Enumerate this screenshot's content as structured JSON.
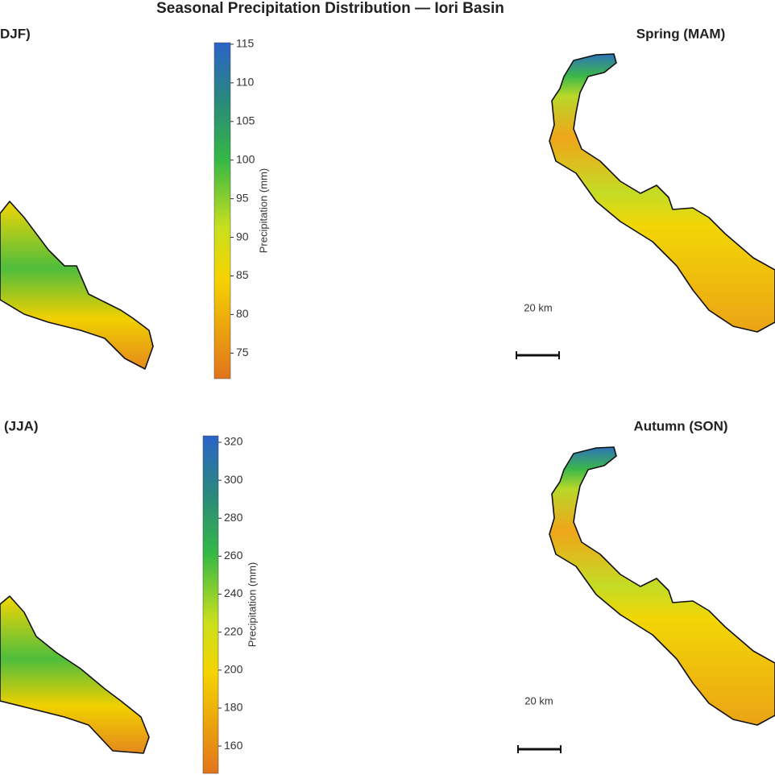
{
  "title": "Seasonal Precipitation Distribution — Iori Basin",
  "panels": [
    {
      "title": "DJF)"
    },
    {
      "title": "Spring (MAM)",
      "scale_label": "20 km"
    },
    {
      "title": "(JJA)"
    },
    {
      "title": "Autumn (SON)",
      "scale_label": "20 km"
    }
  ],
  "colorbars": [
    {
      "label": "Precipitation (mm)",
      "lim": [
        71.7,
        115.2
      ],
      "ticks": [
        75,
        80,
        85,
        90,
        95,
        100,
        105,
        110,
        115
      ]
    },
    {
      "label": "Precipitation (mm)",
      "lim": [
        145.6,
        323.4
      ],
      "ticks": [
        160,
        180,
        200,
        220,
        240,
        260,
        280,
        300,
        320
      ]
    }
  ]
}
